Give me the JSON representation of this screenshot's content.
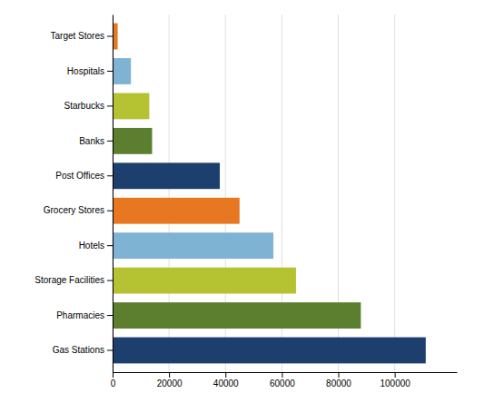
{
  "chart_data": {
    "type": "bar",
    "orientation": "horizontal",
    "categories": [
      "Gas Stations",
      "Pharmacies",
      "Storage Facilities",
      "Hotels",
      "Grocery Stores",
      "Post Offices",
      "Banks",
      "Starbucks",
      "Hospitals",
      "Target Stores"
    ],
    "values": [
      111000,
      88000,
      65000,
      57000,
      45000,
      38000,
      14000,
      13000,
      6500,
      1800
    ],
    "colors": [
      "#1c3f6e",
      "#5b7f2e",
      "#b5c232",
      "#7fb3d3",
      "#e87722",
      "#1c3f6e",
      "#5b7f2e",
      "#b5c232",
      "#7fb3d3",
      "#e87722"
    ],
    "xlim": [
      0,
      122000
    ],
    "xticks": [
      0,
      20000,
      40000,
      60000,
      80000,
      100000
    ],
    "grid": true
  }
}
